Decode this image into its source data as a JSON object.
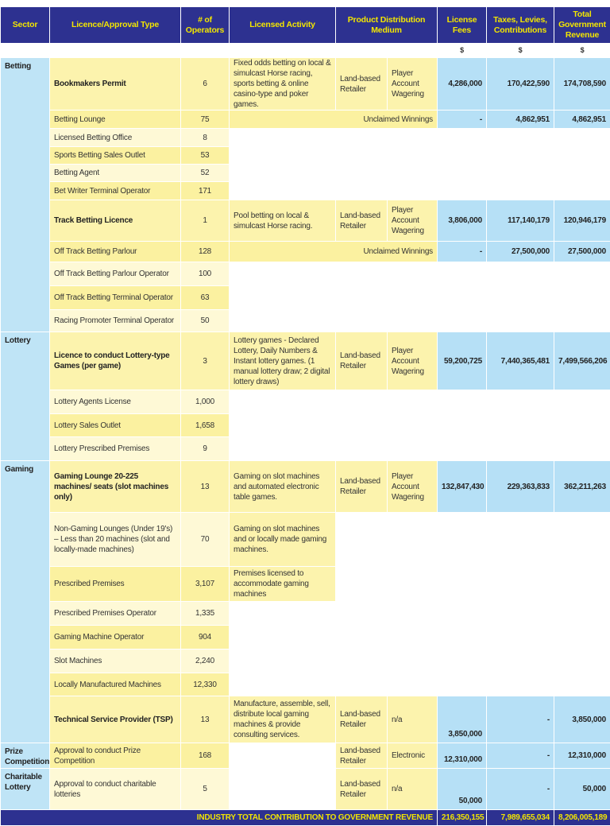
{
  "header": {
    "sector": "Sector",
    "type": "Licence/Approval Type",
    "operators": "# of Operators",
    "activity": "Licensed Activity",
    "medium": "Product Distribution Medium",
    "fees": "License Fees",
    "taxes": "Taxes, Levies, Contributions",
    "total": "Total Government Revenue",
    "currency": "$"
  },
  "sectors": [
    "Betting",
    "Lottery",
    "Gaming",
    "Prize Competition",
    "Charitable Lottery"
  ],
  "rows": [
    {
      "type": "Bookmakers Permit",
      "operators": "6",
      "activity": "Fixed odds betting on local & simulcast Horse racing, sports betting & online casino-type and poker games.",
      "channel": "Land-based Retailer",
      "wagering": "Player Account Wagering",
      "fees": "4,286,000",
      "taxes": "170,422,590",
      "total": "174,708,590"
    },
    {
      "type": "Betting Lounge",
      "operators": "75",
      "unclaimed": "Unclaimed Winnings",
      "fees": "-",
      "taxes": "4,862,951",
      "total": "4,862,951"
    },
    {
      "type": "Licensed Betting Office",
      "operators": "8"
    },
    {
      "type": "Sports Betting Sales Outlet",
      "operators": "53"
    },
    {
      "type": "Betting Agent",
      "operators": "52"
    },
    {
      "type": "Bet Writer Terminal Operator",
      "operators": "171"
    },
    {
      "type": "Track Betting Licence",
      "operators": "1",
      "activity": "Pool betting on local & simulcast Horse racing.",
      "channel": "Land-based Retailer",
      "wagering": "Player Account Wagering",
      "fees": "3,806,000",
      "taxes": "117,140,179",
      "total": "120,946,179"
    },
    {
      "type": "Off Track Betting Parlour",
      "operators": "128",
      "unclaimed": "Unclaimed Winnings",
      "fees": "-",
      "taxes": "27,500,000",
      "total": "27,500,000"
    },
    {
      "type": "Off Track Betting Parlour Operator",
      "operators": "100"
    },
    {
      "type": "Off Track Betting Terminal Operator",
      "operators": "63"
    },
    {
      "type": "Racing Promoter Terminal Operator",
      "operators": "50"
    },
    {
      "type": "Licence to conduct Lottery-type Games (per game)",
      "operators": "3",
      "activity": "Lottery games - Declared Lottery, Daily Numbers & Instant lottery games. (1 manual lottery draw; 2 digital lottery draws)",
      "channel": "Land-based Retailer",
      "wagering": "Player Account Wagering",
      "fees": "59,200,725",
      "taxes": "7,440,365,481",
      "total": "7,499,566,206"
    },
    {
      "type": "Lottery Agents License",
      "operators": "1,000"
    },
    {
      "type": "Lottery Sales Outlet",
      "operators": "1,658"
    },
    {
      "type": "Lottery Prescribed Premises",
      "operators": "9"
    },
    {
      "type": "Gaming Lounge 20-225 machines/ seats (slot machines only)",
      "operators": "13",
      "activity": "Gaming on slot machines and automated electronic table games.",
      "channel": "Land-based Retailer",
      "wagering": "Player Account Wagering",
      "fees": "132,847,430",
      "taxes": "229,363,833",
      "total": "362,211,263"
    },
    {
      "type": "Non-Gaming Lounges (Under 19's) – Less than 20 machines (slot and locally-made machines)",
      "operators": "70",
      "activity": "Gaming on slot machines and or locally made gaming machines."
    },
    {
      "type": "Prescribed Premises",
      "operators": "3,107",
      "activity": "Premises licensed to accommodate gaming machines"
    },
    {
      "type": "Prescribed Premises Operator",
      "operators": "1,335"
    },
    {
      "type": "Gaming Machine Operator",
      "operators": "904"
    },
    {
      "type": "Slot Machines",
      "operators": "2,240"
    },
    {
      "type": "Locally Manufactured Machines",
      "operators": "12,330"
    },
    {
      "type": "Technical Service Provider (TSP)",
      "operators": "13",
      "activity": "Manufacture, assemble, sell, distribute local gaming machines & provide consulting services.",
      "channel": "Land-based Retailer",
      "wagering": "n/a",
      "fees": "3,850,000",
      "taxes": "-",
      "total": "3,850,000"
    },
    {
      "type": "Approval to conduct Prize Competition",
      "operators": "168",
      "activity": "",
      "channel": "Land-based Retailer",
      "wagering": "Electronic",
      "fees": "12,310,000",
      "taxes": "-",
      "total": "12,310,000"
    },
    {
      "type": "Approval to conduct charitable lotteries",
      "operators": "5",
      "activity": "",
      "channel": "Land-based Retailer",
      "wagering": "n/a",
      "fees": "50,000",
      "taxes": "-",
      "total": "50,000"
    }
  ],
  "footer": {
    "label": "INDUSTRY TOTAL CONTRIBUTION TO GOVERNMENT REVENUE",
    "fees": "216,350,155",
    "taxes": "7,989,655,034",
    "total": "8,206,005,189"
  }
}
